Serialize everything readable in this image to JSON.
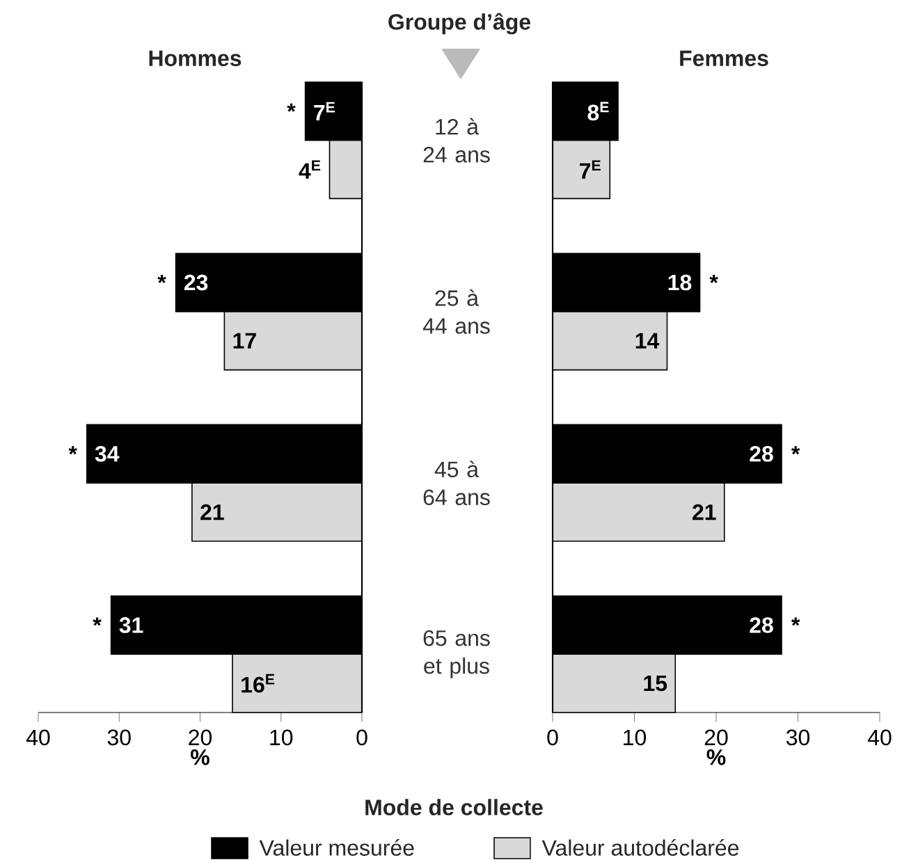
{
  "chart_data": [
    {
      "type": "bar",
      "orientation": "horizontal",
      "title": "Hommes",
      "ylabel": "Groupe d’âge",
      "xlabel": "%",
      "legend_title": "Mode de collecte",
      "legend": "bottom",
      "categories": [
        "12 à 24 ans",
        "25 à 44 ans",
        "45 à 64 ans",
        "65 ans et plus"
      ],
      "series": [
        {
          "name": "Valeur mesurée",
          "color": "#000000",
          "values": [
            7,
            23,
            34,
            31
          ],
          "value_labels": [
            "7$^{E}$",
            "23",
            "34",
            "31"
          ]
        },
        {
          "name": "Valeur autodéclarée",
          "color": "#d9d9d9",
          "values": [
            4,
            17,
            21,
            16
          ],
          "value_labels": [
            "4$^{E}$",
            "17",
            "21",
            "16$^{E}$"
          ]
        }
      ],
      "xlim": [
        40,
        0
      ],
      "xticks": [
        40,
        30,
        20,
        10,
        0
      ],
      "annotations": [
        {
          "text": "*",
          "x": 7,
          "y": "12 à 24 ans"
        },
        {
          "text": "*",
          "x": 23,
          "y": "25 à 44 ans"
        },
        {
          "text": "*",
          "x": 34,
          "y": "45 à 64 ans"
        },
        {
          "text": "*",
          "x": 31,
          "y": "65 ans et plus"
        }
      ]
    },
    {
      "type": "bar",
      "orientation": "horizontal",
      "title": "Femmes",
      "xlabel": "%",
      "tick_labels": "x",
      "categories": [
        "12 à 24 ans",
        "25 à 44 ans",
        "45 à 64 ans",
        "65 ans et plus"
      ],
      "series": [
        {
          "color": "#000000",
          "values": [
            8,
            18,
            28,
            28
          ],
          "value_labels": [
            "8$^{E}$",
            "18",
            "28",
            "28"
          ]
        },
        {
          "color": "#d9d9d9",
          "values": [
            7,
            14,
            21,
            15
          ],
          "value_labels": [
            "7$^{E}$",
            "14",
            "21",
            "15"
          ]
        }
      ],
      "xlim": [
        0,
        40
      ],
      "xticks": [
        0,
        10,
        20,
        30,
        40
      ],
      "annotations": [
        {
          "text": "*",
          "x": 18,
          "y": "25 à 44 ans"
        },
        {
          "text": "*",
          "x": 28,
          "y": "45 à 64 ans"
        },
        {
          "text": "*",
          "x": 28,
          "y": "65 ans et plus"
        }
      ]
    }
  ]
}
